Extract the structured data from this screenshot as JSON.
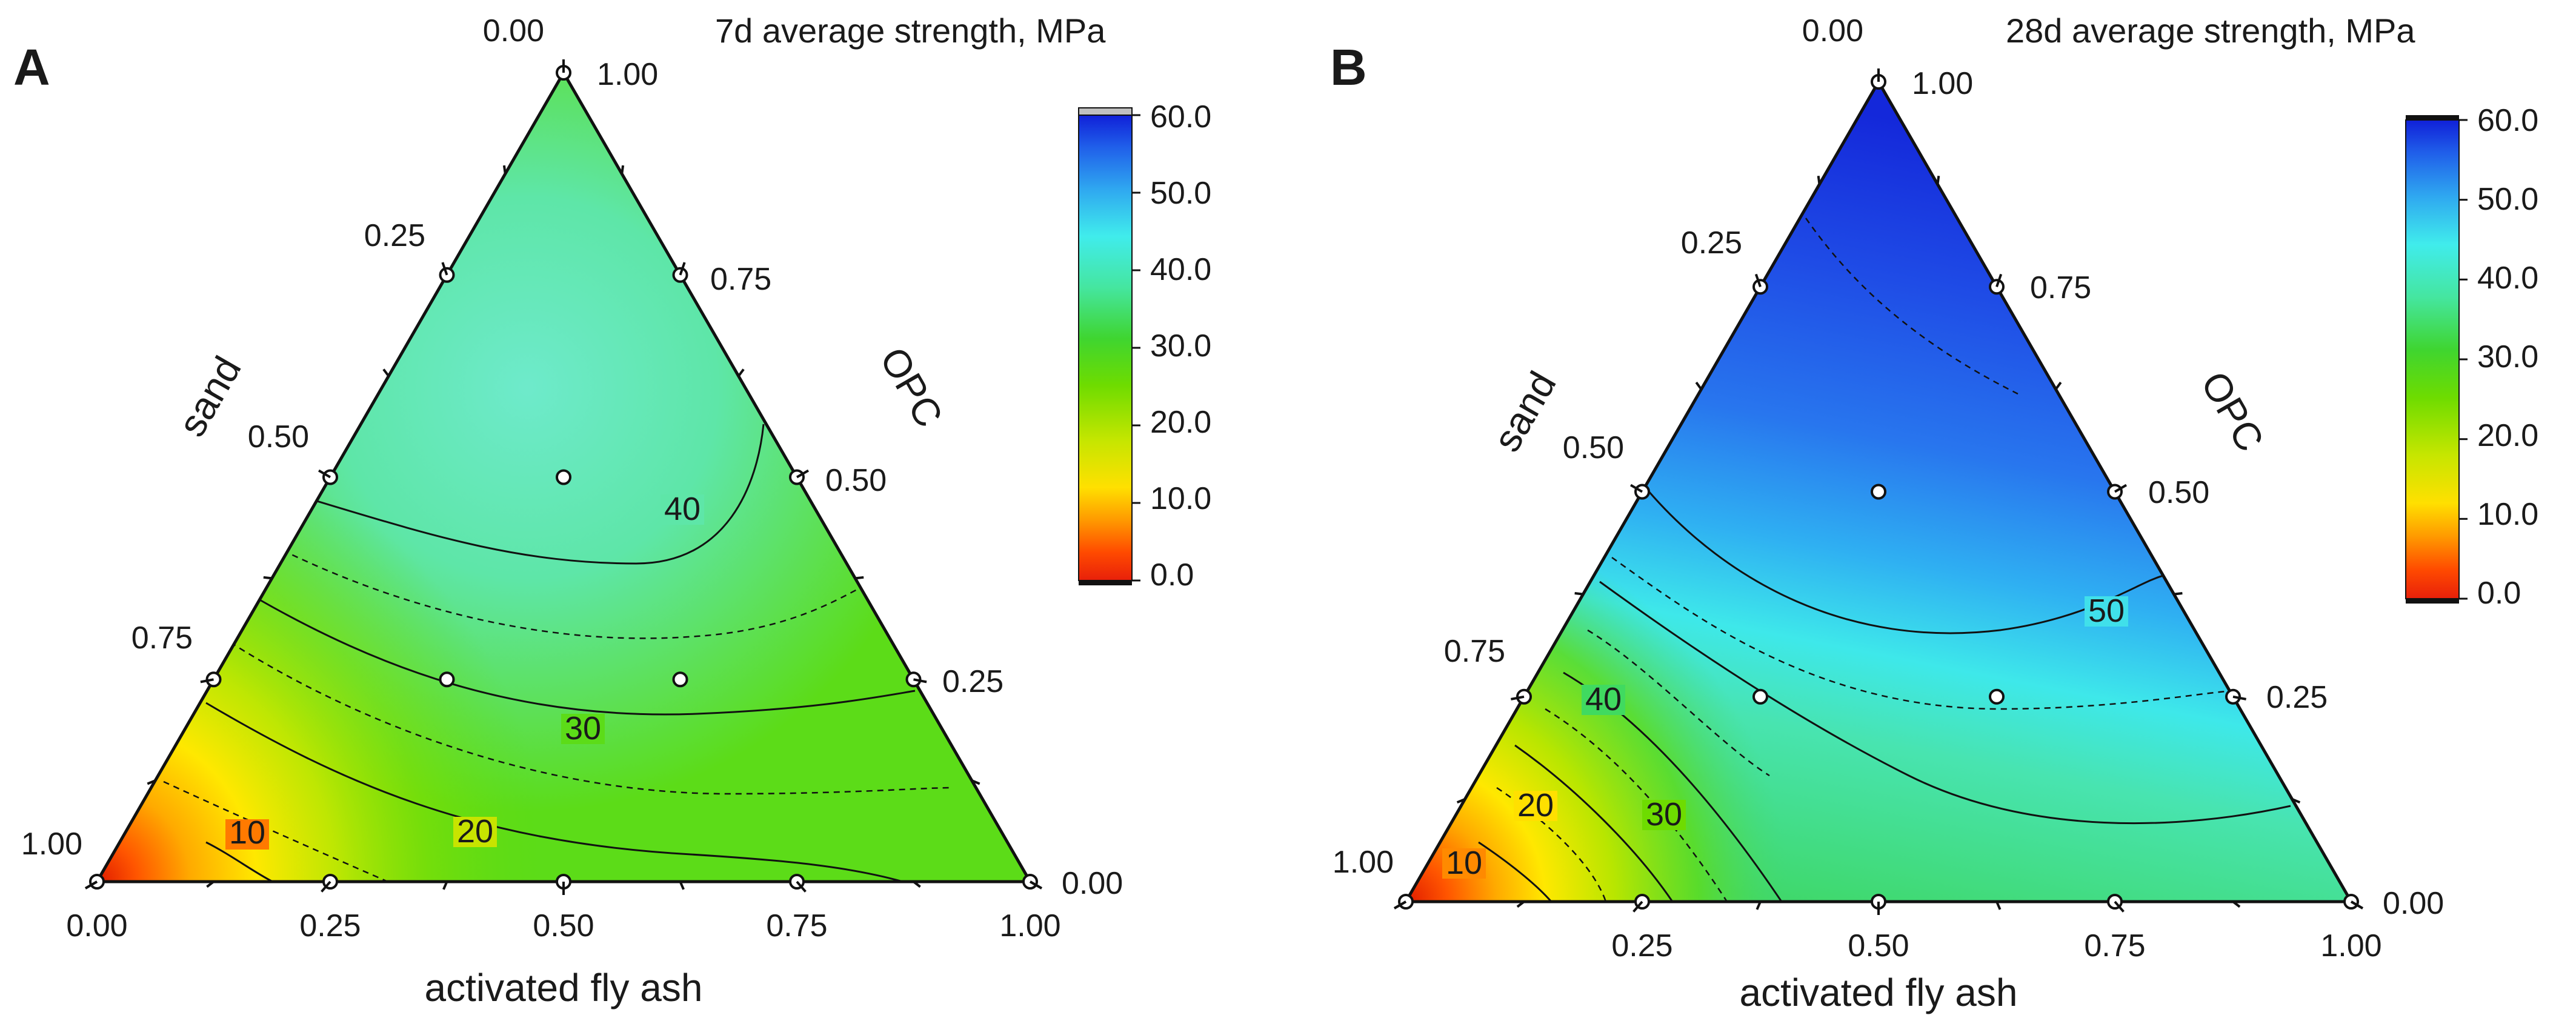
{
  "figure": {
    "panels": [
      {
        "letter": "A",
        "title": "7d average strength, MPa",
        "ticks": [
          "0.00",
          "0.25",
          "0.50",
          "0.75",
          "1.00"
        ],
        "axis_labels": {
          "bottom": "activated fly ash",
          "left": "sand",
          "right": "OPC"
        },
        "contour_labels": [
          "10",
          "20",
          "30",
          "40"
        ],
        "colorbar": {
          "min": 0,
          "max": 60,
          "ticks": [
            "0.0",
            "10.0",
            "20.0",
            "30.0",
            "40.0",
            "50.0",
            "60.0"
          ]
        }
      },
      {
        "letter": "B",
        "title": "28d average strength, MPa",
        "ticks": [
          "0.00",
          "0.25",
          "0.50",
          "0.75",
          "1.00"
        ],
        "axis_labels": {
          "bottom": "activated fly ash",
          "left": "sand",
          "right": "OPC"
        },
        "contour_labels": [
          "10",
          "20",
          "30",
          "40",
          "50"
        ],
        "colorbar": {
          "min": 0,
          "max": 60,
          "ticks": [
            "0.0",
            "10.0",
            "20.0",
            "30.0",
            "40.0",
            "50.0",
            "60.0"
          ]
        }
      }
    ]
  },
  "chart_data": [
    {
      "type": "ternary-contour",
      "title": "7d average strength, MPa",
      "components": {
        "bottom": "activated fly ash",
        "left": "sand",
        "right": "OPC"
      },
      "axis_range": [
        0,
        1
      ],
      "z_range": [
        0,
        60
      ],
      "contour_levels": [
        10,
        20,
        30,
        40
      ],
      "dashed_levels": [
        15,
        25,
        35
      ],
      "design_points": [
        {
          "fly_ash": 0.0,
          "opc": 0.0,
          "sand": 1.0
        },
        {
          "fly_ash": 0.25,
          "opc": 0.0,
          "sand": 0.75
        },
        {
          "fly_ash": 0.5,
          "opc": 0.0,
          "sand": 0.5
        },
        {
          "fly_ash": 0.75,
          "opc": 0.0,
          "sand": 0.25
        },
        {
          "fly_ash": 1.0,
          "opc": 0.0,
          "sand": 0.0
        },
        {
          "fly_ash": 0.0,
          "opc": 0.25,
          "sand": 0.75
        },
        {
          "fly_ash": 0.25,
          "opc": 0.25,
          "sand": 0.5
        },
        {
          "fly_ash": 0.5,
          "opc": 0.25,
          "sand": 0.25
        },
        {
          "fly_ash": 0.75,
          "opc": 0.25,
          "sand": 0.0
        },
        {
          "fly_ash": 0.0,
          "opc": 0.5,
          "sand": 0.5
        },
        {
          "fly_ash": 0.25,
          "opc": 0.5,
          "sand": 0.25
        },
        {
          "fly_ash": 0.5,
          "opc": 0.5,
          "sand": 0.0
        },
        {
          "fly_ash": 0.0,
          "opc": 0.75,
          "sand": 0.25
        },
        {
          "fly_ash": 0.25,
          "opc": 0.75,
          "sand": 0.0
        },
        {
          "fly_ash": 0.0,
          "opc": 1.0,
          "sand": 0.0
        }
      ],
      "estimated_field": {
        "max_region": {
          "fly_ash": 0.2,
          "opc": 0.6,
          "sand": 0.2,
          "value": 44
        },
        "min_region": {
          "fly_ash": 0.0,
          "opc": 0.0,
          "sand": 1.0,
          "value": 2
        }
      }
    },
    {
      "type": "ternary-contour",
      "title": "28d average strength, MPa",
      "components": {
        "bottom": "activated fly ash",
        "left": "sand",
        "right": "OPC"
      },
      "axis_range": [
        0,
        1
      ],
      "z_range": [
        0,
        60
      ],
      "contour_levels": [
        10,
        20,
        30,
        40,
        50
      ],
      "dashed_levels": [
        15,
        25,
        35,
        45,
        55
      ],
      "design_points": [
        {
          "fly_ash": 0.0,
          "opc": 0.0,
          "sand": 1.0
        },
        {
          "fly_ash": 0.25,
          "opc": 0.0,
          "sand": 0.75
        },
        {
          "fly_ash": 0.5,
          "opc": 0.0,
          "sand": 0.5
        },
        {
          "fly_ash": 0.75,
          "opc": 0.0,
          "sand": 0.25
        },
        {
          "fly_ash": 1.0,
          "opc": 0.0,
          "sand": 0.0
        },
        {
          "fly_ash": 0.0,
          "opc": 0.25,
          "sand": 0.75
        },
        {
          "fly_ash": 0.25,
          "opc": 0.25,
          "sand": 0.5
        },
        {
          "fly_ash": 0.5,
          "opc": 0.25,
          "sand": 0.25
        },
        {
          "fly_ash": 0.75,
          "opc": 0.25,
          "sand": 0.0
        },
        {
          "fly_ash": 0.0,
          "opc": 0.5,
          "sand": 0.5
        },
        {
          "fly_ash": 0.25,
          "opc": 0.5,
          "sand": 0.25
        },
        {
          "fly_ash": 0.5,
          "opc": 0.5,
          "sand": 0.0
        },
        {
          "fly_ash": 0.0,
          "opc": 0.75,
          "sand": 0.25
        },
        {
          "fly_ash": 0.25,
          "opc": 0.75,
          "sand": 0.0
        },
        {
          "fly_ash": 0.0,
          "opc": 1.0,
          "sand": 0.0
        }
      ],
      "estimated_field": {
        "max_region": {
          "fly_ash": 0.1,
          "opc": 0.85,
          "sand": 0.05,
          "value": 60
        },
        "min_region": {
          "fly_ash": 0.0,
          "opc": 0.0,
          "sand": 1.0,
          "value": 2
        }
      }
    }
  ]
}
